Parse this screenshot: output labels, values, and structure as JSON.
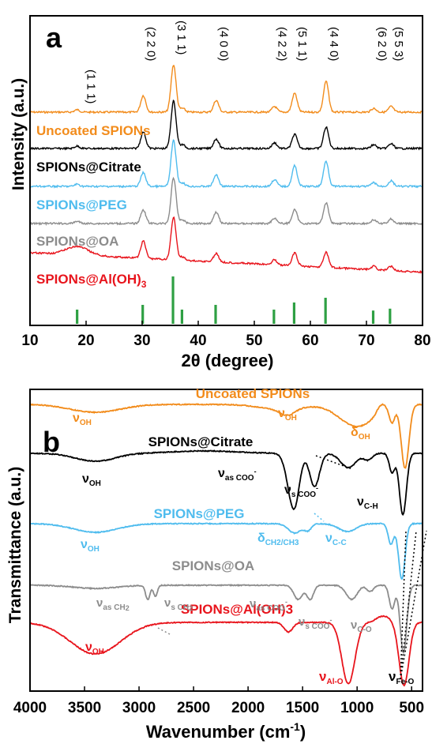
{
  "panels": {
    "a": {
      "letter": "a",
      "xlabel": "2θ (degree)",
      "ylabel": "Intensity (a.u.)",
      "xticks": [
        "10",
        "20",
        "30",
        "40",
        "50",
        "60",
        "70",
        "80"
      ],
      "hkl": [
        {
          "x": 19.5,
          "label": "(1 1 1)"
        },
        {
          "x": 30.2,
          "label": "(2 2 0)"
        },
        {
          "x": 35.6,
          "label": "(3 1 1)"
        },
        {
          "x": 43.2,
          "label": "(4 0 0)"
        },
        {
          "x": 53.6,
          "label": "(4 2 2)"
        },
        {
          "x": 57.2,
          "label": "(5 1 1)"
        },
        {
          "x": 62.8,
          "label": "(4 4 0)"
        },
        {
          "x": 71.4,
          "label": "(6 2 0)"
        },
        {
          "x": 74.4,
          "label": "(5 5 3)"
        }
      ],
      "reference_peaks": [
        {
          "x": 18.4,
          "intensity": 0.3
        },
        {
          "x": 30.1,
          "intensity": 0.4
        },
        {
          "x": 35.5,
          "intensity": 1.0
        },
        {
          "x": 37.1,
          "intensity": 0.3
        },
        {
          "x": 43.1,
          "intensity": 0.4
        },
        {
          "x": 53.5,
          "intensity": 0.3
        },
        {
          "x": 57.1,
          "intensity": 0.45
        },
        {
          "x": 62.7,
          "intensity": 0.55
        },
        {
          "x": 71.2,
          "intensity": 0.28
        },
        {
          "x": 74.2,
          "intensity": 0.32
        }
      ],
      "series_labels": [
        "Uncoated SPIONs",
        "SPIONs@Citrate",
        "SPIONs@PEG",
        "SPIONs@OA",
        "SPIONs@Al(OH)"
      ],
      "label_subscript": "3",
      "colors": [
        "#f28c1c",
        "#000000",
        "#4fbcee",
        "#8c8c8c",
        "#e8141c"
      ],
      "ref_color": "#2ea043"
    },
    "b": {
      "letter": "b",
      "xlabel": "Wavenumber (cm",
      "xlabel_sup": "-1",
      "xlabel_end": ")",
      "ylabel": "Transmittance (a.u.)",
      "xticks": [
        "4000",
        "3500",
        "3000",
        "2500",
        "2000",
        "1500",
        "1000",
        "500"
      ],
      "series_labels": [
        "Uncoated SPIONs",
        "SPIONs@Citrate",
        "SPIONs@PEG",
        "SPIONs@OA",
        "SPIONs@Al(OH)3"
      ],
      "colors": [
        "#f28c1c",
        "#000000",
        "#4fbcee",
        "#8c8c8c",
        "#e8141c"
      ],
      "annotations": {
        "uncoated_voh1": "ν",
        "uncoated_voh1_sub": "OH",
        "uncoated_voh2": "ν",
        "uncoated_voh2_sub": "OH",
        "uncoated_doh": "δ",
        "uncoated_doh_sub": "OH",
        "citrate_voh": "ν",
        "citrate_voh_sub": "OH",
        "citrate_vas": "ν",
        "citrate_vas_sub": "as COO",
        "citrate_vs": "ν",
        "citrate_vs_sub": "s COO",
        "citrate_vch": "ν",
        "citrate_vch_sub": "C-H",
        "peg_voh": "ν",
        "peg_voh_sub": "OH",
        "peg_d": "δ",
        "peg_d_sub": "CH2/CH3",
        "peg_vcc": "ν",
        "peg_vcc_sub": "C-C",
        "oa_vasch": "ν",
        "oa_vasch_sub": "as CH",
        "oa_vsch": "ν",
        "oa_vsch_sub": "s CH",
        "oa_vas": "ν",
        "oa_vas_sub": "as COO",
        "oa_vs": "ν",
        "oa_vs_sub": "s COO",
        "oa_vco": "ν",
        "oa_vco_sub": "C-O",
        "al_voh": "ν",
        "al_voh_sub": "OH",
        "al_valo": "ν",
        "al_valo_sub": "Al-O",
        "al_vfeo": "ν",
        "al_vfeo_sub": "Fe-O"
      }
    }
  },
  "chart_data": [
    {
      "type": "line",
      "title": "",
      "xlabel": "2θ (degree)",
      "ylabel": "Intensity (a.u.)",
      "xlim": [
        10,
        80
      ],
      "yticks_shown": false,
      "peaks_2theta": [
        18.4,
        30.2,
        35.6,
        37.2,
        43.2,
        53.6,
        57.2,
        62.8,
        71.3,
        74.4
      ],
      "series": [
        {
          "name": "Uncoated SPIONs",
          "color": "#f28c1c",
          "peak_heights": [
            0.05,
            0.35,
            1.0,
            0.08,
            0.25,
            0.12,
            0.4,
            0.65,
            0.08,
            0.12
          ]
        },
        {
          "name": "SPIONs@Citrate",
          "color": "#000000",
          "peak_heights": [
            0.05,
            0.35,
            1.0,
            0.08,
            0.2,
            0.12,
            0.3,
            0.45,
            0.08,
            0.1
          ]
        },
        {
          "name": "SPIONs@PEG",
          "color": "#4fbcee",
          "peak_heights": [
            0.05,
            0.3,
            1.0,
            0.08,
            0.25,
            0.15,
            0.45,
            0.55,
            0.08,
            0.12
          ]
        },
        {
          "name": "SPIONs@OA",
          "color": "#8c8c8c",
          "peak_heights": [
            0.05,
            0.3,
            1.0,
            0.08,
            0.25,
            0.12,
            0.3,
            0.45,
            0.08,
            0.1
          ]
        },
        {
          "name": "SPIONs@Al(OH)3",
          "color": "#e8141c",
          "peak_heights": [
            0.2,
            0.4,
            1.0,
            0.08,
            0.2,
            0.12,
            0.3,
            0.35,
            0.08,
            0.1
          ]
        }
      ]
    },
    {
      "type": "line",
      "title": "",
      "xlabel": "Wavenumber (cm-1)",
      "ylabel": "Transmittance (a.u.)",
      "xlim": [
        4000,
        400
      ],
      "x_reversed": true,
      "yticks_shown": false,
      "series": [
        {
          "name": "Uncoated SPIONs",
          "color": "#f28c1c",
          "bands_cm-1": [
            3400,
            1630,
            1050,
            580
          ]
        },
        {
          "name": "SPIONs@Citrate",
          "color": "#000000",
          "bands_cm-1": [
            3400,
            1580,
            1390,
            1070,
            570
          ]
        },
        {
          "name": "SPIONs@PEG",
          "color": "#4fbcee",
          "bands_cm-1": [
            3400,
            1560,
            1480,
            570
          ]
        },
        {
          "name": "SPIONs@OA",
          "color": "#8c8c8c",
          "bands_cm-1": [
            2920,
            2850,
            1540,
            1430,
            1050,
            570
          ]
        },
        {
          "name": "SPIONs@Al(OH)3",
          "color": "#e8141c",
          "bands_cm-1": [
            3400,
            1630,
            1080,
            570
          ]
        }
      ],
      "reference_lines_cm-1": [
        630,
        590,
        560
      ]
    }
  ]
}
